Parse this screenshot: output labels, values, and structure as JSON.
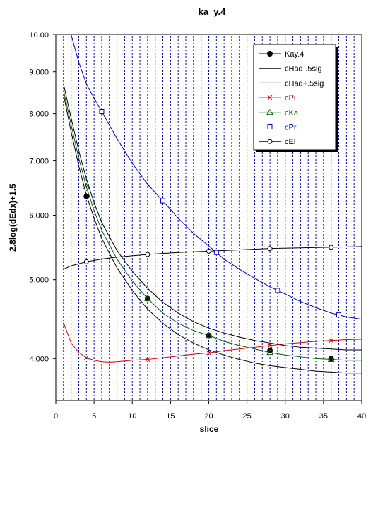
{
  "chart_data": {
    "type": "line",
    "title": "ka_y.4",
    "xlabel": "slice",
    "ylabel": "2.8log(dEdx)+1.5",
    "xlim": [
      0,
      40
    ],
    "ylim": [
      3.55,
      10.0
    ],
    "yscale": "log",
    "grid": "vertical dotted lines at every slice",
    "legend_position": "top-right",
    "x_ticks": [
      {
        "value": 0,
        "label": "0"
      },
      {
        "value": 5,
        "label": "5"
      },
      {
        "value": 10,
        "label": "10"
      },
      {
        "value": 15,
        "label": "15"
      },
      {
        "value": 20,
        "label": "20"
      },
      {
        "value": 25,
        "label": "25"
      },
      {
        "value": 30,
        "label": "30"
      },
      {
        "value": 35,
        "label": "35"
      },
      {
        "value": 40,
        "label": "40"
      }
    ],
    "y_ticks": [
      {
        "value": 10.0,
        "label": "10.00"
      },
      {
        "value": 9.0,
        "label": "9.000"
      },
      {
        "value": 8.0,
        "label": "8.000"
      },
      {
        "value": 7.0,
        "label": "7.000"
      },
      {
        "value": 6.0,
        "label": "6.000"
      },
      {
        "value": 5.0,
        "label": "5.000"
      },
      {
        "value": 4.0,
        "label": "4.000"
      }
    ],
    "series": [
      {
        "name": "Kay.4",
        "color": "#000000",
        "marker": "filled-circle",
        "line": false,
        "x": [
          4,
          12,
          20,
          28,
          36
        ],
        "y": [
          6.33,
          4.74,
          4.27,
          4.09,
          4.0
        ]
      },
      {
        "name": "cHad-.5sig",
        "color": "#000000",
        "marker": "none",
        "line": true,
        "x": [
          1,
          2,
          3,
          4,
          5,
          6,
          8,
          10,
          12,
          14,
          16,
          18,
          20,
          22,
          24,
          26,
          28,
          30,
          32,
          34,
          36,
          38,
          40
        ],
        "y": [
          8.45,
          7.6,
          6.9,
          6.35,
          5.95,
          5.62,
          5.17,
          4.85,
          4.6,
          4.42,
          4.28,
          4.18,
          4.1,
          4.04,
          3.99,
          3.95,
          3.92,
          3.9,
          3.88,
          3.86,
          3.85,
          3.84,
          3.84
        ]
      },
      {
        "name": "cHad+.5sig",
        "color": "#000000",
        "marker": "none",
        "line": true,
        "x": [
          1,
          2,
          3,
          4,
          5,
          6,
          8,
          10,
          12,
          14,
          16,
          18,
          20,
          22,
          24,
          26,
          28,
          30,
          32,
          34,
          36,
          38,
          40
        ],
        "y": [
          8.7,
          7.9,
          7.2,
          6.65,
          6.22,
          5.88,
          5.43,
          5.12,
          4.88,
          4.69,
          4.55,
          4.44,
          4.36,
          4.3,
          4.25,
          4.21,
          4.18,
          4.15,
          4.13,
          4.12,
          4.11,
          4.1,
          4.1
        ]
      },
      {
        "name": "cPi",
        "color": "#d00000",
        "marker": "x",
        "line": true,
        "x": [
          1,
          2,
          3,
          4,
          5,
          6,
          7,
          8,
          10,
          12,
          14,
          16,
          18,
          20,
          22,
          24,
          26,
          28,
          30,
          32,
          34,
          36,
          38,
          40
        ],
        "y": [
          4.43,
          4.18,
          4.07,
          4.01,
          3.98,
          3.965,
          3.96,
          3.965,
          3.98,
          3.99,
          4.01,
          4.03,
          4.05,
          4.065,
          4.09,
          4.11,
          4.13,
          4.15,
          4.17,
          4.185,
          4.2,
          4.21,
          4.22,
          4.225
        ],
        "marker_x": [
          4,
          12,
          20,
          28,
          36
        ]
      },
      {
        "name": "cKa",
        "color": "#006000",
        "marker": "triangle",
        "line": true,
        "x": [
          1,
          2,
          3,
          4,
          5,
          6,
          8,
          10,
          12,
          14,
          16,
          18,
          20,
          22,
          24,
          26,
          28,
          30,
          32,
          34,
          36,
          38,
          40
        ],
        "y": [
          8.55,
          7.75,
          7.05,
          6.5,
          6.08,
          5.75,
          5.3,
          4.98,
          4.74,
          4.55,
          4.42,
          4.33,
          4.27,
          4.2,
          4.15,
          4.11,
          4.07,
          4.04,
          4.02,
          4.0,
          3.99,
          3.98,
          3.98
        ],
        "marker_x": [
          4,
          12,
          20,
          28,
          36
        ]
      },
      {
        "name": "cPr",
        "color": "#0000c0",
        "marker": "open-square",
        "line": true,
        "x": [
          2,
          3,
          4,
          5,
          6,
          8,
          10,
          12,
          14,
          16,
          18,
          20,
          22,
          24,
          26,
          28,
          30,
          32,
          34,
          36,
          38,
          40
        ],
        "y": [
          10.0,
          9.25,
          8.7,
          8.35,
          8.05,
          7.45,
          6.95,
          6.55,
          6.25,
          5.95,
          5.7,
          5.5,
          5.3,
          5.15,
          5.02,
          4.9,
          4.8,
          4.7,
          4.62,
          4.55,
          4.5,
          4.47
        ],
        "marker_x": [
          6,
          14,
          21,
          29,
          37
        ]
      },
      {
        "name": "cEl",
        "color": "#000000",
        "marker": "open-circle",
        "line": true,
        "x": [
          1,
          2,
          4,
          6,
          8,
          10,
          12,
          16,
          20,
          24,
          28,
          32,
          36,
          40
        ],
        "y": [
          5.15,
          5.2,
          5.26,
          5.3,
          5.33,
          5.35,
          5.37,
          5.4,
          5.42,
          5.44,
          5.46,
          5.47,
          5.48,
          5.49
        ],
        "marker_x": [
          4,
          12,
          20,
          28,
          36
        ]
      }
    ]
  }
}
